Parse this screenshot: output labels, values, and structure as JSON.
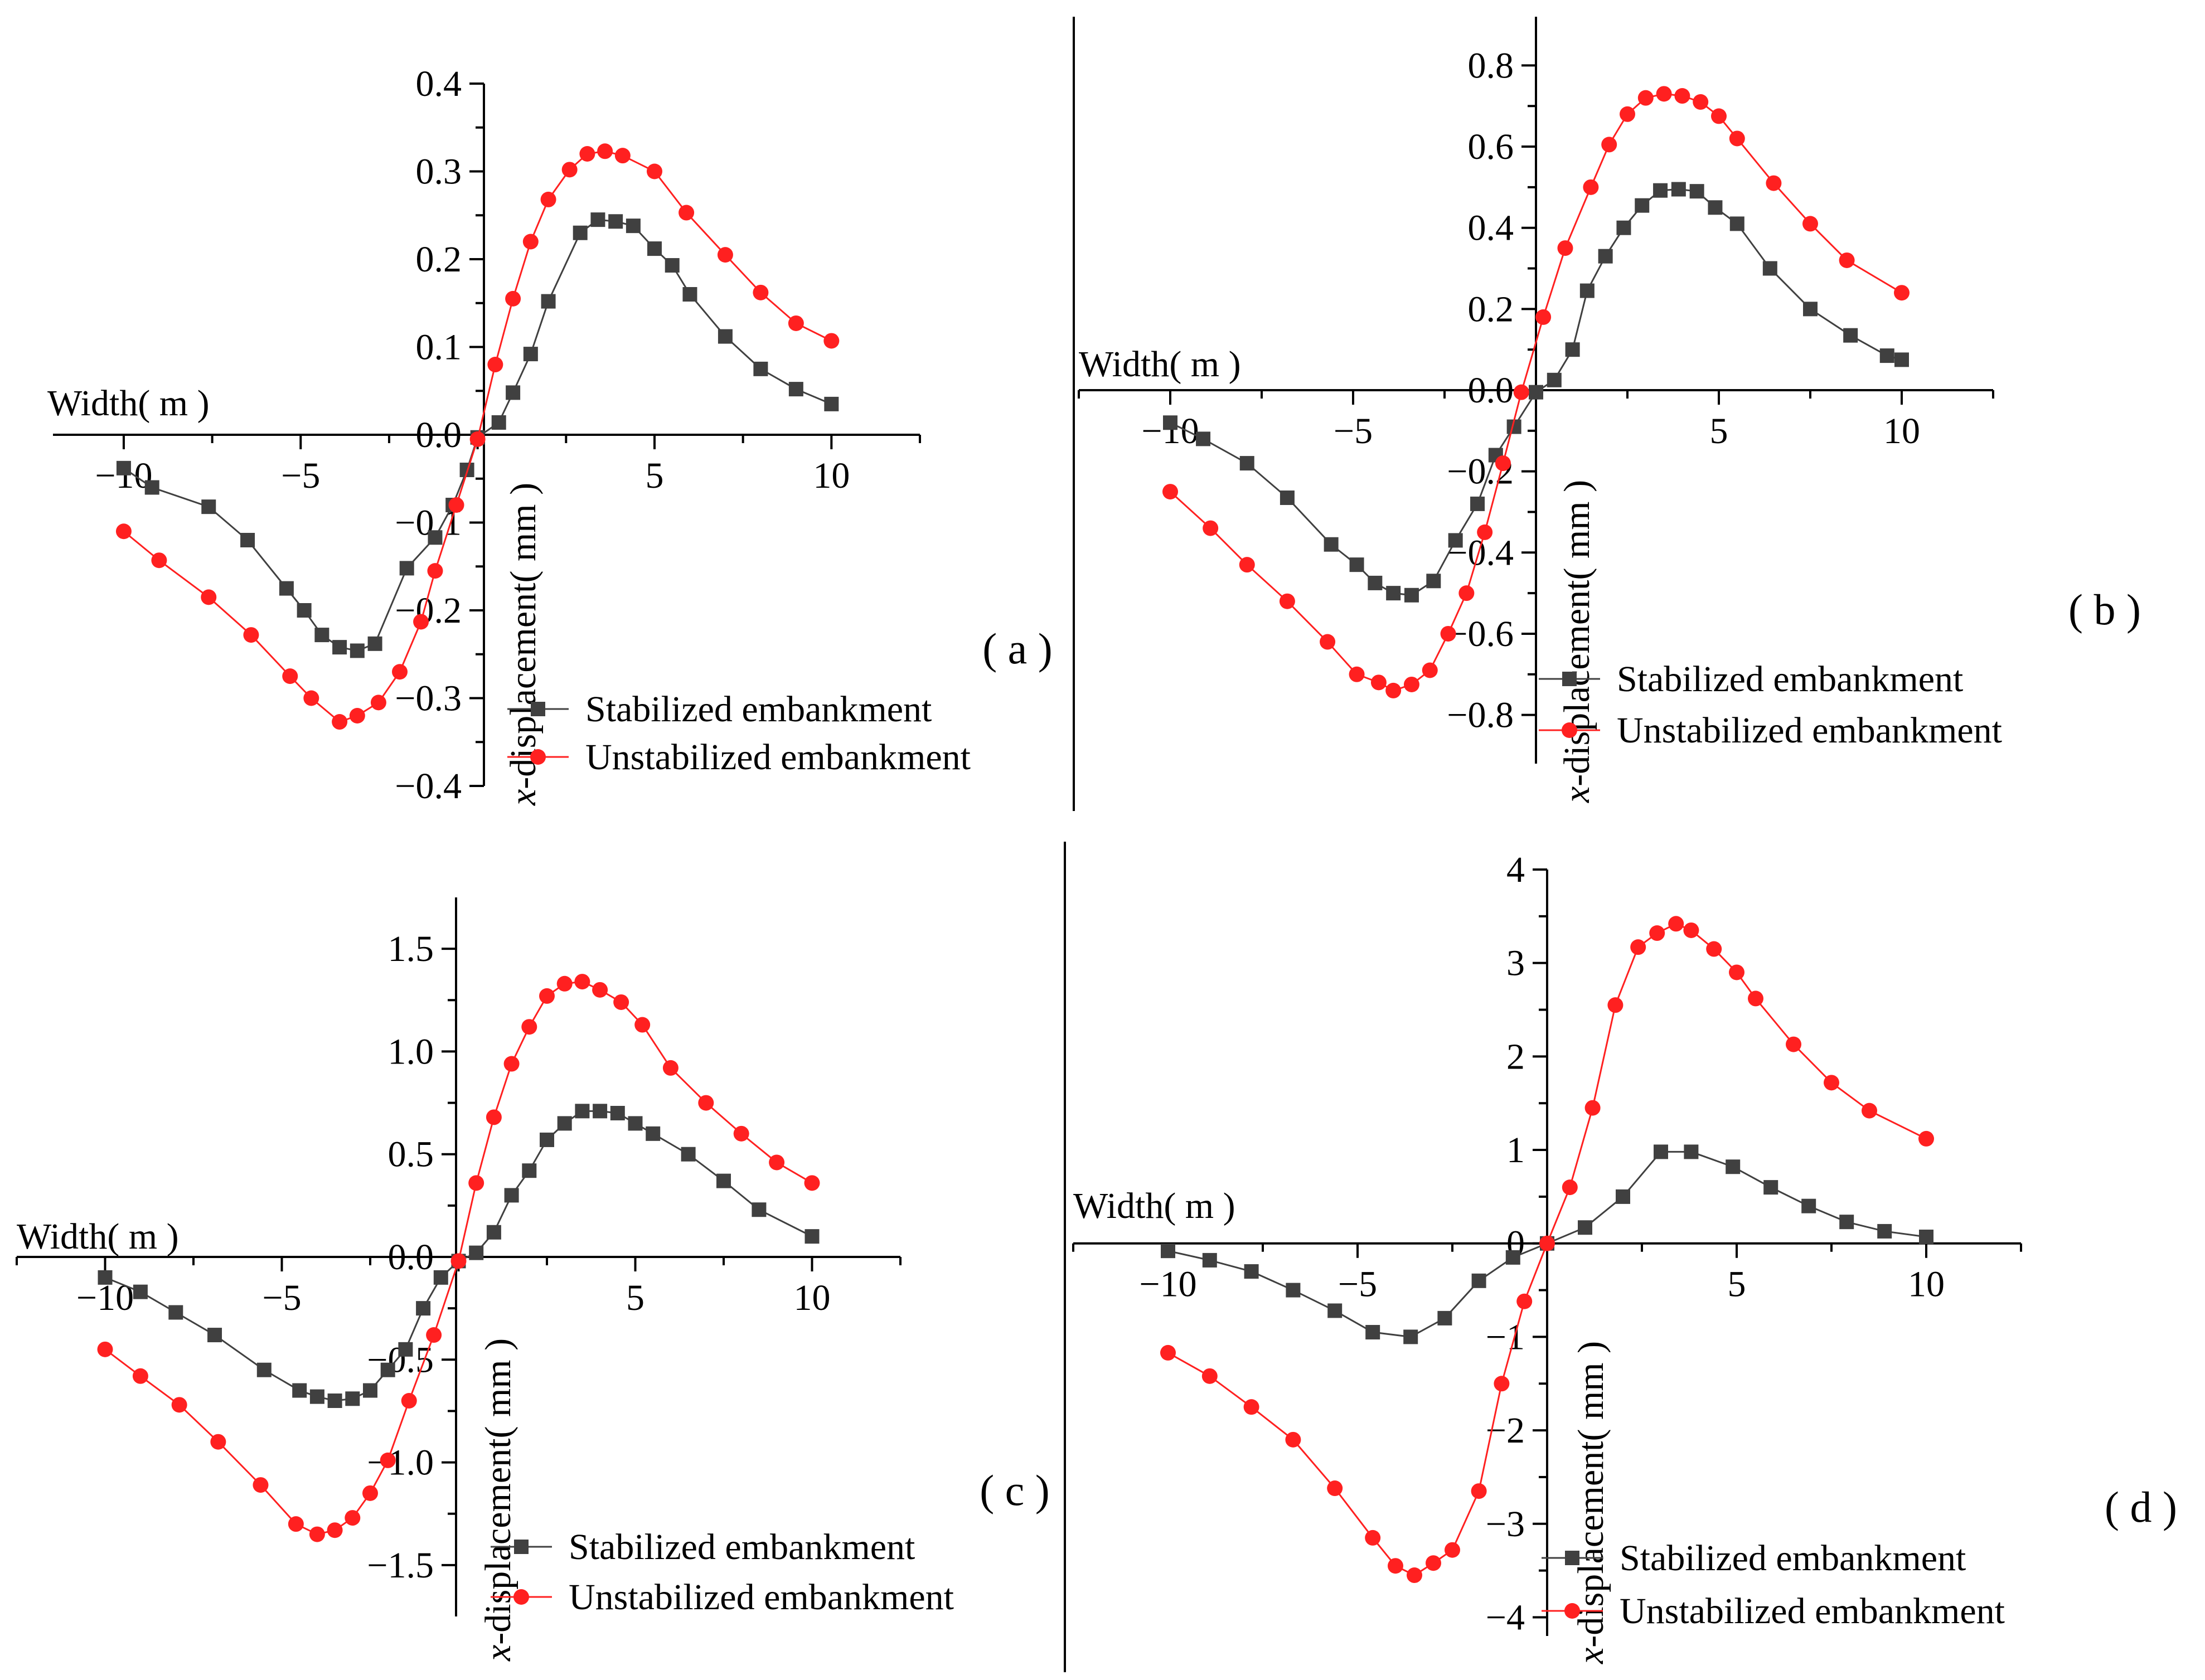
{
  "chart_data": [
    {
      "type": "line",
      "panel_label": "( a )",
      "xlabel": "Width( m )",
      "ylabel": "x-displacement( mm )",
      "ylabel_italic": "x",
      "ylabel_rest": "-displacement( mm )",
      "xlim": [
        -12,
        12.5
      ],
      "ylim": [
        -0.4,
        0.4
      ],
      "xticks": [
        -10,
        -5,
        0,
        5,
        10
      ],
      "xtick_labels": [
        "−10",
        "−5",
        "",
        "5",
        "10"
      ],
      "yticks": [
        -0.4,
        -0.3,
        -0.2,
        -0.1,
        0.0,
        0.1,
        0.2,
        0.3,
        0.4
      ],
      "ytick_labels": [
        "−0.4",
        "−0.3",
        "−0.2",
        "−0.1",
        "0.0",
        "0.1",
        "0.2",
        "0.3",
        "0.4"
      ],
      "legend": [
        "Stabilized embankment",
        "Unstabilized embankment"
      ],
      "series": [
        {
          "name": "Stabilized embankment",
          "color": "#404040",
          "marker": "square",
          "x": [
            -10,
            -9.2,
            -7.6,
            -6.5,
            -5.4,
            -4.9,
            -4.4,
            -3.9,
            -3.4,
            -2.9,
            -2.0,
            -1.2,
            -0.7,
            -0.3,
            0,
            0.6,
            1.0,
            1.5,
            2.0,
            2.9,
            3.4,
            3.9,
            4.4,
            5.0,
            5.5,
            6.0,
            7.0,
            8.0,
            9.0,
            10.0
          ],
          "y": [
            -0.038,
            -0.06,
            -0.082,
            -0.12,
            -0.175,
            -0.2,
            -0.228,
            -0.242,
            -0.246,
            -0.238,
            -0.152,
            -0.117,
            -0.08,
            -0.04,
            -0.003,
            0.014,
            0.048,
            0.092,
            0.152,
            0.23,
            0.245,
            0.243,
            0.238,
            0.212,
            0.193,
            0.16,
            0.112,
            0.075,
            0.052,
            0.035
          ]
        },
        {
          "name": "Unstabilized embankment",
          "color": "#ff2020",
          "marker": "circle",
          "x": [
            -10,
            -9.0,
            -7.6,
            -6.4,
            -5.3,
            -4.7,
            -3.9,
            -3.4,
            -2.8,
            -2.2,
            -1.6,
            -1.2,
            -0.6,
            0,
            0.5,
            1.0,
            1.5,
            2.0,
            2.6,
            3.1,
            3.6,
            4.1,
            5.0,
            5.9,
            7.0,
            8.0,
            9.0,
            10.0
          ],
          "y": [
            -0.11,
            -0.143,
            -0.185,
            -0.228,
            -0.275,
            -0.3,
            -0.327,
            -0.32,
            -0.305,
            -0.27,
            -0.213,
            -0.155,
            -0.08,
            -0.005,
            0.08,
            0.155,
            0.22,
            0.268,
            0.302,
            0.32,
            0.323,
            0.318,
            0.3,
            0.253,
            0.205,
            0.162,
            0.127,
            0.107
          ]
        }
      ]
    },
    {
      "type": "line",
      "panel_label": "( b )",
      "xlabel": "Width( m )",
      "ylabel": "x-displacement( mm )",
      "ylabel_italic": "x",
      "ylabel_rest": "-displacement( mm )",
      "xlim": [
        -12.5,
        12.5
      ],
      "ylim": [
        -0.92,
        0.92
      ],
      "xticks": [
        -10,
        -5,
        0,
        5,
        10
      ],
      "xtick_labels": [
        "−10",
        "−5",
        "",
        "5",
        "10"
      ],
      "yticks": [
        -0.8,
        -0.6,
        -0.4,
        -0.2,
        0.0,
        0.2,
        0.4,
        0.6,
        0.8
      ],
      "ytick_labels": [
        "−0.8",
        "−0.6",
        "−0.4",
        "−0.2",
        "0.0",
        "0.2",
        "0.4",
        "0.6",
        "0.8"
      ],
      "legend": [
        "Stabilized embankment",
        "Unstabilized embankment"
      ],
      "series": [
        {
          "name": "Stabilized embankment",
          "color": "#404040",
          "marker": "square",
          "x": [
            -10,
            -9.1,
            -7.9,
            -6.8,
            -5.6,
            -4.9,
            -4.4,
            -3.9,
            -3.4,
            -2.8,
            -2.2,
            -1.6,
            -1.1,
            -0.6,
            0,
            0.5,
            1.0,
            1.4,
            1.9,
            2.4,
            2.9,
            3.4,
            3.9,
            4.4,
            4.9,
            5.5,
            6.4,
            7.5,
            8.6,
            9.6,
            10.0
          ],
          "y": [
            -0.08,
            -0.12,
            -0.18,
            -0.265,
            -0.38,
            -0.43,
            -0.475,
            -0.5,
            -0.505,
            -0.47,
            -0.37,
            -0.28,
            -0.16,
            -0.09,
            -0.005,
            0.025,
            0.1,
            0.245,
            0.33,
            0.4,
            0.455,
            0.492,
            0.495,
            0.49,
            0.45,
            0.41,
            0.3,
            0.2,
            0.135,
            0.085,
            0.075
          ]
        },
        {
          "name": "Unstabilized embankment",
          "color": "#ff2020",
          "marker": "circle",
          "x": [
            -10,
            -8.9,
            -7.9,
            -6.8,
            -5.7,
            -4.9,
            -4.3,
            -3.9,
            -3.4,
            -2.9,
            -2.4,
            -1.9,
            -1.4,
            -0.9,
            -0.4,
            0.2,
            0.8,
            1.5,
            2.0,
            2.5,
            3.0,
            3.5,
            4.0,
            4.5,
            5.0,
            5.5,
            6.5,
            7.5,
            8.5,
            10.0
          ],
          "y": [
            -0.25,
            -0.34,
            -0.43,
            -0.52,
            -0.62,
            -0.7,
            -0.72,
            -0.74,
            -0.725,
            -0.69,
            -0.6,
            -0.5,
            -0.35,
            -0.18,
            -0.005,
            0.18,
            0.35,
            0.5,
            0.605,
            0.68,
            0.72,
            0.73,
            0.725,
            0.71,
            0.675,
            0.62,
            0.51,
            0.41,
            0.32,
            0.24
          ]
        }
      ]
    },
    {
      "type": "line",
      "panel_label": "( c )",
      "xlabel": "Width( m )",
      "ylabel": "x-displacement( mm )",
      "ylabel_italic": "x",
      "ylabel_rest": "-displacement( mm )",
      "xlim": [
        -12.5,
        12.5
      ],
      "ylim": [
        -1.75,
        1.75
      ],
      "xticks": [
        -10,
        -5,
        0,
        5,
        10
      ],
      "xtick_labels": [
        "−10",
        "−5",
        "",
        "5",
        "10"
      ],
      "yticks": [
        -1.5,
        -1.0,
        -0.5,
        0.0,
        0.5,
        1.0,
        1.5
      ],
      "ytick_labels": [
        "−1.5",
        "−1.0",
        "−0.5",
        "0.0",
        "0.5",
        "1.0",
        "1.5"
      ],
      "legend": [
        "Stabilized embankment",
        "Unstabilized embankment"
      ],
      "series": [
        {
          "name": "Stabilized embankment",
          "color": "#404040",
          "marker": "square",
          "x": [
            -10,
            -9.0,
            -8.0,
            -6.9,
            -5.5,
            -4.5,
            -4.0,
            -3.5,
            -3.0,
            -2.5,
            -2.0,
            -1.5,
            -1.0,
            -0.5,
            0,
            0.5,
            1.0,
            1.5,
            2.0,
            2.5,
            3.0,
            3.5,
            4.0,
            4.5,
            5.0,
            5.5,
            6.5,
            7.5,
            8.5,
            10.0
          ],
          "y": [
            -0.1,
            -0.17,
            -0.27,
            -0.38,
            -0.55,
            -0.65,
            -0.68,
            -0.7,
            -0.69,
            -0.65,
            -0.55,
            -0.45,
            -0.25,
            -0.1,
            -0.02,
            0.02,
            0.12,
            0.3,
            0.42,
            0.57,
            0.65,
            0.71,
            0.71,
            0.7,
            0.65,
            0.6,
            0.5,
            0.37,
            0.23,
            0.1
          ]
        },
        {
          "name": "Unstabilized embankment",
          "color": "#ff2020",
          "marker": "circle",
          "x": [
            -10,
            -9.0,
            -7.9,
            -6.8,
            -5.6,
            -4.6,
            -4.0,
            -3.5,
            -3.0,
            -2.5,
            -2.0,
            -1.4,
            -0.7,
            0,
            0.5,
            1.0,
            1.5,
            2.0,
            2.5,
            3.0,
            3.5,
            4.0,
            4.6,
            5.2,
            6.0,
            7.0,
            8.0,
            9.0,
            10.0
          ],
          "y": [
            -0.45,
            -0.58,
            -0.72,
            -0.9,
            -1.11,
            -1.3,
            -1.35,
            -1.33,
            -1.27,
            -1.15,
            -0.99,
            -0.7,
            -0.38,
            -0.02,
            0.36,
            0.68,
            0.94,
            1.12,
            1.27,
            1.33,
            1.34,
            1.3,
            1.24,
            1.13,
            0.92,
            0.75,
            0.6,
            0.46,
            0.36
          ]
        }
      ]
    },
    {
      "type": "line",
      "panel_label": "( d )",
      "xlabel": "Width( m )",
      "ylabel": "x-displacement( mm )",
      "ylabel_italic": "x",
      "ylabel_rest": "-displacement( mm )",
      "xlim": [
        -12.5,
        12.5
      ],
      "ylim": [
        -4.2,
        4.0
      ],
      "xticks": [
        -10,
        -5,
        0,
        5,
        10
      ],
      "xtick_labels": [
        "−10",
        "−5",
        "",
        "5",
        "10"
      ],
      "yticks": [
        -4,
        -3,
        -2,
        -1,
        0,
        1,
        2,
        3,
        4
      ],
      "ytick_labels": [
        "−4",
        "−3",
        "−2",
        "−1",
        "0",
        "1",
        "2",
        "3",
        "4"
      ],
      "legend": [
        "Stabilized embankment",
        "Unstabilized embankment"
      ],
      "series": [
        {
          "name": "Stabilized embankment",
          "color": "#404040",
          "marker": "square",
          "x": [
            -10,
            -8.9,
            -7.8,
            -6.7,
            -5.6,
            -4.6,
            -3.6,
            -2.7,
            -1.8,
            -0.9,
            0,
            1.0,
            2.0,
            3.0,
            3.8,
            4.9,
            5.9,
            6.9,
            7.9,
            8.9,
            10.0
          ],
          "y": [
            -0.08,
            -0.18,
            -0.3,
            -0.5,
            -0.72,
            -0.95,
            -1.0,
            -0.8,
            -0.4,
            -0.15,
            0.0,
            0.17,
            0.5,
            0.98,
            0.98,
            0.82,
            0.6,
            0.4,
            0.23,
            0.13,
            0.07
          ]
        },
        {
          "name": "Unstabilized embankment",
          "color": "#ff2020",
          "marker": "circle",
          "x": [
            -10,
            -8.9,
            -7.8,
            -6.7,
            -5.6,
            -4.6,
            -4.0,
            -3.5,
            -3.0,
            -2.5,
            -1.8,
            -1.2,
            -0.6,
            0,
            0.6,
            1.2,
            1.8,
            2.4,
            2.9,
            3.4,
            3.8,
            4.4,
            5.0,
            5.5,
            6.5,
            7.5,
            8.5,
            10.0
          ],
          "y": [
            -1.17,
            -1.42,
            -1.75,
            -2.1,
            -2.62,
            -3.15,
            -3.45,
            -3.55,
            -3.42,
            -3.28,
            -2.65,
            -1.5,
            -0.62,
            0.0,
            0.6,
            1.45,
            2.55,
            3.17,
            3.32,
            3.42,
            3.35,
            3.15,
            2.9,
            2.62,
            2.13,
            1.72,
            1.42,
            1.12
          ]
        }
      ]
    }
  ]
}
